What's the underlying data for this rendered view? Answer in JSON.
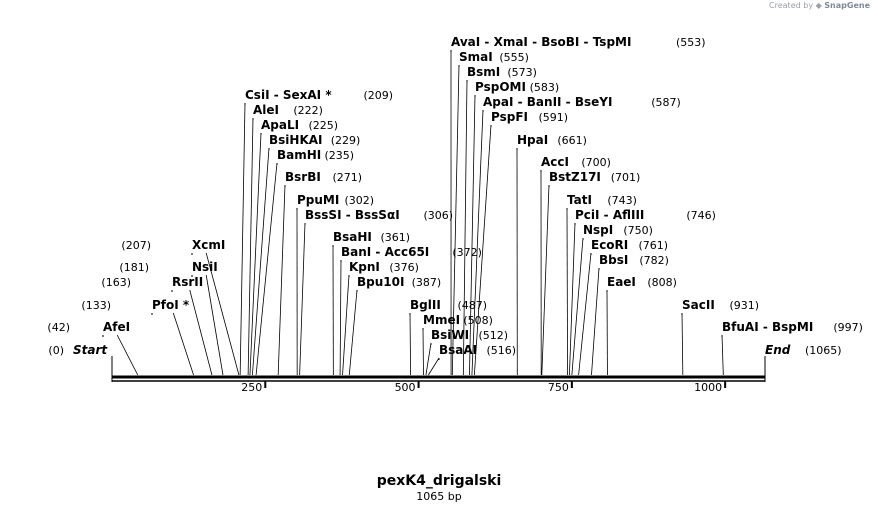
{
  "credit": {
    "prefix": "Created by",
    "brand": "SnapGene"
  },
  "plasmid": {
    "name": "pexK4_drigalski",
    "length_label": "1065 bp",
    "length": 1065
  },
  "ends": {
    "start": {
      "label": "Start",
      "pos_text": "(0)",
      "pos": 0
    },
    "end": {
      "label": "End",
      "pos_text": "(1065)",
      "pos": 1065
    }
  },
  "ruler_ticks": [
    {
      "value": 250,
      "label": "250"
    },
    {
      "value": 500,
      "label": "500"
    },
    {
      "value": 750,
      "label": "750"
    },
    {
      "value": 1000,
      "label": "1000"
    }
  ],
  "sites": [
    {
      "name": "AfeI",
      "pos": 42,
      "pos_text": "(42)"
    },
    {
      "name": "PfoI *",
      "pos": 133,
      "pos_text": "(133)"
    },
    {
      "name": "RsrII",
      "pos": 163,
      "pos_text": "(163)"
    },
    {
      "name": "NsiI",
      "pos": 181,
      "pos_text": "(181)"
    },
    {
      "name": "XcmI",
      "pos": 207,
      "pos_text": "(207)"
    },
    {
      "name": "CsiI  - SexAI *",
      "pos": 209,
      "pos_text": "(209)"
    },
    {
      "name": "AleI",
      "pos": 222,
      "pos_text": "(222)"
    },
    {
      "name": "ApaLI",
      "pos": 225,
      "pos_text": "(225)"
    },
    {
      "name": "BsiHKAI",
      "pos": 229,
      "pos_text": "(229)"
    },
    {
      "name": "BamHI",
      "pos": 235,
      "pos_text": "(235)"
    },
    {
      "name": "BsrBI",
      "pos": 271,
      "pos_text": "(271)"
    },
    {
      "name": "PpuMI",
      "pos": 302,
      "pos_text": "(302)"
    },
    {
      "name": "BssSI  - BssSαI",
      "pos": 306,
      "pos_text": "(306)"
    },
    {
      "name": "BsaHI",
      "pos": 361,
      "pos_text": "(361)"
    },
    {
      "name": "BanI  - Acc65I",
      "pos": 372,
      "pos_text": "(372)"
    },
    {
      "name": "KpnI",
      "pos": 376,
      "pos_text": "(376)"
    },
    {
      "name": "Bpu10I",
      "pos": 387,
      "pos_text": "(387)"
    },
    {
      "name": "BglII",
      "pos": 487,
      "pos_text": "(487)"
    },
    {
      "name": "MmeI",
      "pos": 508,
      "pos_text": "(508)"
    },
    {
      "name": "BsiWI",
      "pos": 512,
      "pos_text": "(512)"
    },
    {
      "name": "BsaAI",
      "pos": 516,
      "pos_text": "(516)"
    },
    {
      "name": "AvaI  - XmaI  - BsoBI  - TspMI",
      "pos": 553,
      "pos_text": "(553)"
    },
    {
      "name": "SmaI",
      "pos": 555,
      "pos_text": "(555)"
    },
    {
      "name": "BsmI",
      "pos": 573,
      "pos_text": "(573)"
    },
    {
      "name": "PspOMI",
      "pos": 583,
      "pos_text": "(583)"
    },
    {
      "name": "ApaI  - BanII  - BseYI",
      "pos": 587,
      "pos_text": "(587)"
    },
    {
      "name": "PspFI",
      "pos": 591,
      "pos_text": "(591)"
    },
    {
      "name": "HpaI",
      "pos": 661,
      "pos_text": "(661)"
    },
    {
      "name": "AccI",
      "pos": 700,
      "pos_text": "(700)"
    },
    {
      "name": "BstZ17I",
      "pos": 701,
      "pos_text": "(701)"
    },
    {
      "name": "TatI",
      "pos": 743,
      "pos_text": "(743)"
    },
    {
      "name": "PciI  - AflIII",
      "pos": 746,
      "pos_text": "(746)"
    },
    {
      "name": "NspI",
      "pos": 750,
      "pos_text": "(750)"
    },
    {
      "name": "EcoRI",
      "pos": 761,
      "pos_text": "(761)"
    },
    {
      "name": "BbsI",
      "pos": 782,
      "pos_text": "(782)"
    },
    {
      "name": "EaeI",
      "pos": 808,
      "pos_text": "(808)"
    },
    {
      "name": "SacII",
      "pos": 931,
      "pos_text": "(931)"
    },
    {
      "name": "BfuAI  - BspMI",
      "pos": 997,
      "pos_text": "(997)"
    }
  ]
}
